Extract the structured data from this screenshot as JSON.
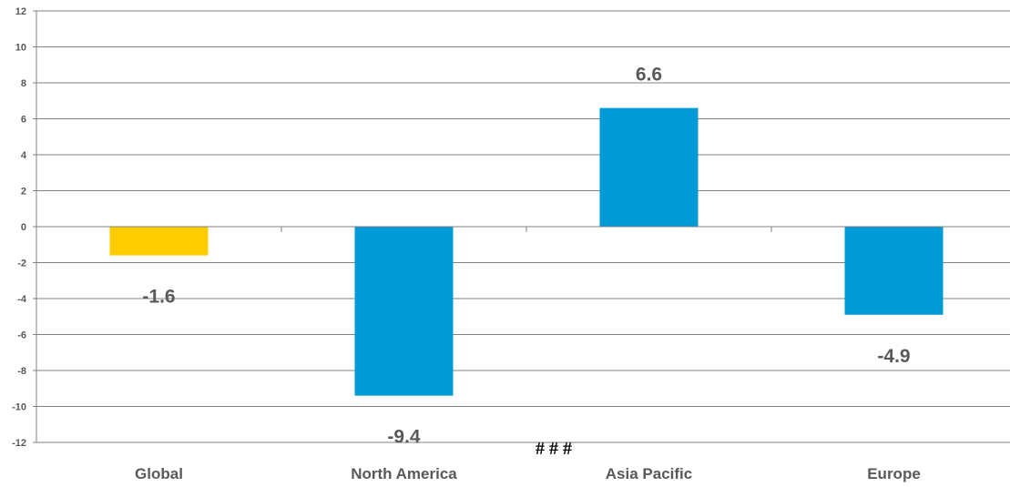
{
  "chart_data": {
    "type": "bar",
    "categories": [
      "Global",
      "North America",
      "Asia Pacific",
      "Europe"
    ],
    "values": [
      -1.6,
      -9.4,
      6.6,
      -4.9
    ],
    "data_labels": [
      "-1.6",
      "-9.4",
      "6.6",
      "-4.9"
    ],
    "bar_colors": [
      "#ffcc00",
      "#009ad6",
      "#009ad6",
      "#009ad6"
    ],
    "ylim": [
      -12,
      12
    ],
    "yticks": [
      -12,
      -10,
      -8,
      -6,
      -4,
      -2,
      0,
      2,
      4,
      6,
      8,
      10,
      12
    ],
    "grid": true,
    "gridline_color": "#808080",
    "axis_color": "#808080",
    "label_color": "#595959",
    "note": "# # #",
    "title": "",
    "xlabel": "",
    "ylabel": ""
  }
}
